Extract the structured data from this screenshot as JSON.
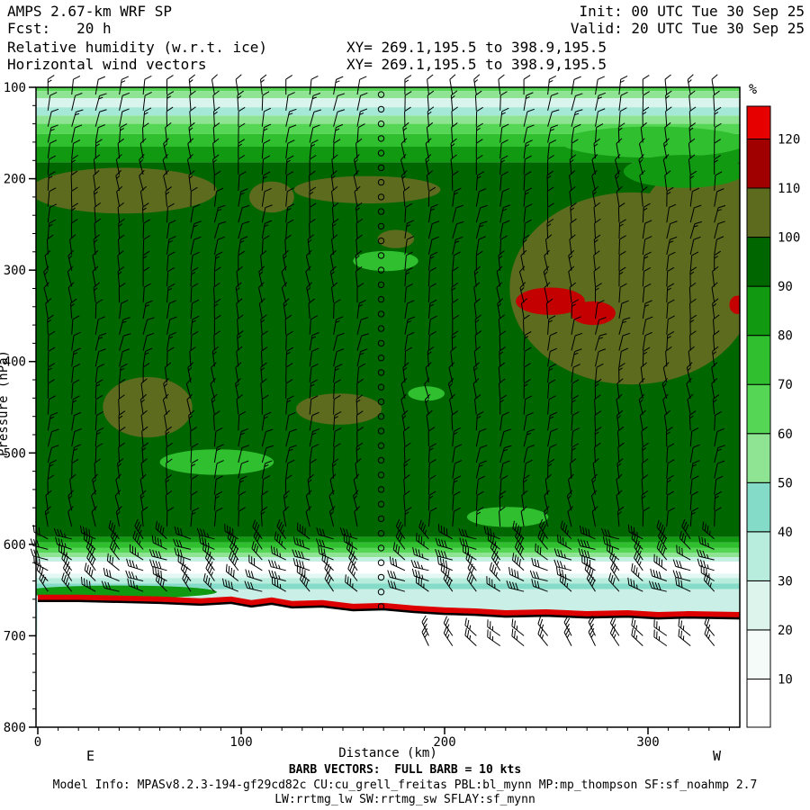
{
  "header": {
    "model": "AMPS 2.67-km WRF SP",
    "fcst": "Fcst:   20 h",
    "init": "Init: 00 UTC Tue 30 Sep 25",
    "valid": "Valid: 20 UTC Tue 30 Sep 25",
    "field_line": "Relative humidity (w.r.t. ice)",
    "xy_line1": "XY= 269.1,195.5 to 398.9,195.5",
    "vector_line": "Horizontal wind vectors",
    "xy_line2": "XY= 269.1,195.5 to 398.9,195.5"
  },
  "footer": {
    "east_label": "E",
    "west_label": "W",
    "barb_note": "BARB VECTORS:  FULL BARB = 10 kts",
    "model_info": "Model Info: MPASv8.2.3-194-gf29cd82c CU:cu_grell_freitas PBL:bl_mynn MP:mp_thompson SF:sf_noahmp 2.7",
    "model_info2": "LW:rrtmg_lw SW:rrtmg_sw SFLAY:sf_mynn"
  },
  "chart_data": {
    "type": "heatmap",
    "title": "Relative humidity (w.r.t. ice)",
    "overlay": "Horizontal wind vectors",
    "xlabel": "Distance (km)",
    "ylabel": "Pressure (hPa)",
    "x_ticks": [
      0,
      100,
      200,
      300
    ],
    "x_range_km": [
      0,
      345
    ],
    "y_ticks": [
      100,
      200,
      300,
      400,
      500,
      600,
      700,
      800
    ],
    "y_range_hpa": [
      100,
      800
    ],
    "colorbar": {
      "units": "%",
      "ticks": [
        10,
        20,
        30,
        40,
        50,
        60,
        70,
        80,
        90,
        100,
        110,
        120
      ],
      "colors": [
        "#ffffff",
        "#f4fbf8",
        "#ddf4ec",
        "#b8ecdc",
        "#84dcc8",
        "#8fe494",
        "#55d655",
        "#2fbf2f",
        "#119911",
        "#006600",
        "#5d6b1e",
        "#a00000",
        "#e60000"
      ]
    },
    "field": {
      "bands": [
        [
          100,
          104,
          "#55d655"
        ],
        [
          104,
          112,
          "#8fe494"
        ],
        [
          112,
          122,
          "#d8f4ec"
        ],
        [
          122,
          131,
          "#a5e8d8"
        ],
        [
          131,
          140,
          "#8fe494"
        ],
        [
          140,
          151,
          "#55d655"
        ],
        [
          151,
          165,
          "#2fbf2f"
        ],
        [
          165,
          182,
          "#119911"
        ],
        [
          182,
          592,
          "#006600"
        ],
        [
          592,
          598,
          "#119911"
        ],
        [
          598,
          604,
          "#2fbf2f"
        ],
        [
          604,
          609,
          "#55d655"
        ],
        [
          609,
          614,
          "#8fe494"
        ],
        [
          614,
          619,
          "#c6f0e4"
        ],
        [
          619,
          632,
          "#ffffff"
        ],
        [
          632,
          637,
          "#e4f8f3"
        ],
        [
          637,
          643,
          "#b8ecdc"
        ],
        [
          643,
          649,
          "#84dcc8"
        ],
        [
          649,
          700,
          "#c9efe6"
        ]
      ],
      "blobs": [
        [
          42,
          213,
          46,
          25,
          "#5d6b1e"
        ],
        [
          115,
          220,
          11,
          17,
          "#5d6b1e"
        ],
        [
          162,
          212,
          36,
          15,
          "#5d6b1e"
        ],
        [
          292,
          320,
          60,
          105,
          "#5d6b1e"
        ],
        [
          332,
          252,
          36,
          72,
          "#5d6b1e"
        ],
        [
          54,
          450,
          22,
          33,
          "#5d6b1e"
        ],
        [
          148,
          452,
          21,
          17,
          "#5d6b1e"
        ],
        [
          176,
          266,
          9,
          10,
          "#5d6b1e"
        ],
        [
          303,
          160,
          46,
          17,
          "#2fbf2f"
        ],
        [
          318,
          192,
          30,
          18,
          "#119911"
        ],
        [
          88,
          510,
          28,
          14,
          "#2fbf2f"
        ],
        [
          171,
          290,
          16,
          11,
          "#2fbf2f"
        ],
        [
          191,
          435,
          9,
          8,
          "#2fbf2f"
        ],
        [
          231,
          570,
          20,
          11,
          "#2fbf2f"
        ],
        [
          40,
          652,
          48,
          7,
          "#119911"
        ],
        [
          252,
          334,
          17,
          15,
          "#c40000"
        ],
        [
          273,
          347,
          11,
          13,
          "#c40000"
        ],
        [
          344,
          338,
          4,
          10,
          "#c40000"
        ]
      ]
    },
    "terrain": {
      "points": [
        [
          0,
          662
        ],
        [
          20,
          662
        ],
        [
          40,
          663
        ],
        [
          60,
          664
        ],
        [
          80,
          666
        ],
        [
          95,
          664
        ],
        [
          105,
          668
        ],
        [
          115,
          665
        ],
        [
          125,
          669
        ],
        [
          140,
          668
        ],
        [
          155,
          672
        ],
        [
          170,
          671
        ],
        [
          185,
          674
        ],
        [
          200,
          676
        ],
        [
          215,
          677
        ],
        [
          230,
          679
        ],
        [
          250,
          678
        ],
        [
          270,
          680
        ],
        [
          290,
          679
        ],
        [
          305,
          681
        ],
        [
          320,
          680
        ],
        [
          345,
          681
        ]
      ],
      "line_color": "#000000",
      "band_color": "#dd0000"
    },
    "barbs": {
      "full_barb_kts": 10,
      "col_start": 5,
      "col_step": 11.7,
      "col_end": 343,
      "calm_column_km": 174,
      "upper": {
        "p0": 108,
        "p1": 582,
        "dp": 17.5
      },
      "dry": {
        "p0": 594,
        "p1": 652,
        "dp": 11.5,
        "speed": 30
      },
      "surface": {
        "p0": 700,
        "p1": 712,
        "dp": 11,
        "km_from": 190,
        "speed": 25
      },
      "calm": {
        "p0": 108,
        "p1": 676,
        "dp": 16
      }
    }
  }
}
